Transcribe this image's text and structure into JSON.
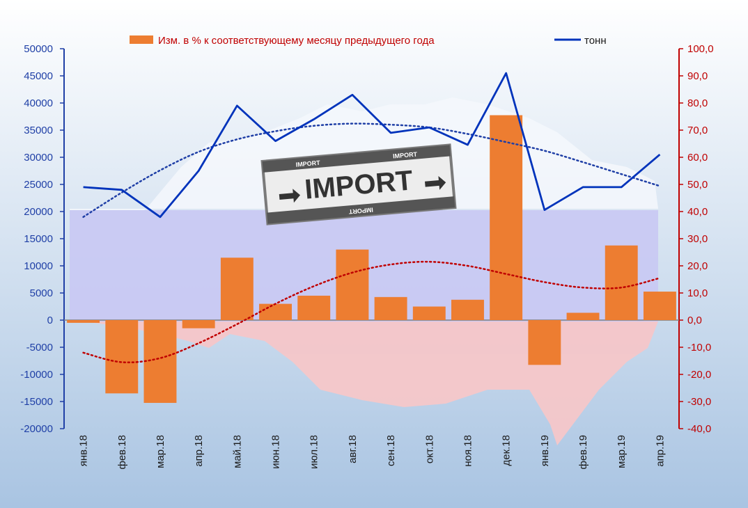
{
  "colors": {
    "bar": "#ED7D31",
    "line": "#0033BB",
    "left_axis": "#1F3FA6",
    "right_axis": "#C00000",
    "trend_left": "#1F3FA6",
    "trend_right": "#C00000",
    "bg_top": "#FFFFFF",
    "bg_bottom": "#A9C4E2"
  },
  "legend": {
    "bar_label": "Изм. в % к соответствующему месяцу предыдущего года",
    "line_label": "тонн"
  },
  "stamp": {
    "main_text": "IMPORT",
    "small_text": "IMPORT"
  },
  "chart_data": {
    "type": "bar",
    "categories": [
      "янв.18",
      "фев.18",
      "мар.18",
      "апр.18",
      "май.18",
      "июн.18",
      "июл.18",
      "авг.18",
      "сен.18",
      "окт.18",
      "ноя.18",
      "дек.18",
      "янв.19",
      "фев.19",
      "мар.19",
      "апр.19"
    ],
    "series": [
      {
        "name": "Изм. в % к соответствующему месяцу предыдущего года",
        "type": "bar",
        "axis": "right",
        "values": [
          -1.0,
          -27.0,
          -30.5,
          -3.0,
          23.0,
          6.0,
          9.0,
          26.0,
          8.5,
          5.0,
          7.5,
          75.5,
          -16.5,
          2.7,
          27.5,
          10.5
        ]
      },
      {
        "name": "тонн",
        "type": "line",
        "axis": "left",
        "values": [
          24500,
          24000,
          19000,
          27500,
          39500,
          33000,
          37000,
          41500,
          34500,
          35500,
          32300,
          45500,
          20300,
          24500,
          24500,
          30500
        ]
      }
    ],
    "trendlines": [
      {
        "axis": "left",
        "style": "dotted",
        "values": [
          19000,
          23500,
          27600,
          31000,
          33300,
          34800,
          35800,
          36200,
          36000,
          35500,
          34300,
          32800,
          31200,
          29100,
          26900,
          24700
        ]
      },
      {
        "axis": "right",
        "style": "dotted",
        "values": [
          -12.0,
          -15.5,
          -14.0,
          -8.5,
          -1.5,
          6.0,
          12.5,
          17.5,
          20.5,
          21.5,
          20.0,
          17.0,
          14.0,
          12.0,
          12.0,
          15.5
        ]
      }
    ],
    "left_axis": {
      "min": -20000,
      "max": 50000,
      "step": 5000,
      "ticks": [
        "-20000",
        "-15000",
        "-10000",
        "-5000",
        "0",
        "5000",
        "10000",
        "15000",
        "20000",
        "25000",
        "30000",
        "35000",
        "40000",
        "45000",
        "50000"
      ]
    },
    "right_axis": {
      "min": -40,
      "max": 100,
      "step": 10,
      "ticks": [
        "-40,0",
        "-30,0",
        "-20,0",
        "-10,0",
        "0,0",
        "10,0",
        "20,0",
        "30,0",
        "40,0",
        "50,0",
        "60,0",
        "70,0",
        "80,0",
        "90,0",
        "100,0"
      ]
    },
    "legend_position": "top",
    "grid": false
  }
}
